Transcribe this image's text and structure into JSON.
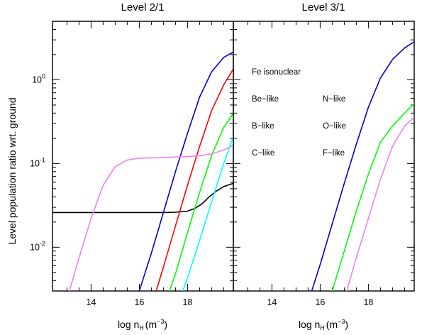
{
  "chart_data": [
    {
      "type": "line",
      "title": "Level 2/1",
      "xlabel": "log n",
      "xlabel_sub": "H",
      "xlabel_unit": "(m",
      "xlabel_sup": "−3",
      "xlabel_close": ")",
      "ylabel": "Level population ratio wrt. ground",
      "xlim": [
        12.4,
        19.9
      ],
      "ylim": [
        0.003,
        5
      ],
      "yscale": "log",
      "xticks": [
        14,
        16,
        18
      ],
      "yticks": [
        {
          "value": 0.01,
          "base": "10",
          "exp": "-2"
        },
        {
          "value": 0.1,
          "base": "10",
          "exp": "-1"
        },
        {
          "value": 1,
          "base": "10",
          "exp": "0"
        }
      ],
      "series": [
        {
          "name": "Be-like",
          "color": "#000000",
          "points": [
            [
              12.4,
              0.026
            ],
            [
              17.0,
              0.026
            ],
            [
              17.5,
              0.0262
            ],
            [
              18.0,
              0.027
            ],
            [
              18.3,
              0.029
            ],
            [
              18.6,
              0.033
            ],
            [
              18.9,
              0.04
            ],
            [
              19.2,
              0.047
            ],
            [
              19.5,
              0.053
            ],
            [
              19.9,
              0.058
            ]
          ]
        },
        {
          "name": "B-like",
          "color": "#ff0000",
          "points": [
            [
              16.7,
              0.003
            ],
            [
              17.0,
              0.0058
            ],
            [
              17.5,
              0.018
            ],
            [
              18.0,
              0.055
            ],
            [
              18.5,
              0.16
            ],
            [
              19.0,
              0.43
            ],
            [
              19.5,
              0.87
            ],
            [
              19.9,
              1.35
            ]
          ]
        },
        {
          "name": "C-like",
          "color": "#0000cd",
          "points": [
            [
              16.0,
              0.003
            ],
            [
              16.5,
              0.0085
            ],
            [
              17.0,
              0.026
            ],
            [
              17.5,
              0.08
            ],
            [
              18.0,
              0.23
            ],
            [
              18.5,
              0.62
            ],
            [
              19.0,
              1.25
            ],
            [
              19.5,
              1.85
            ],
            [
              19.9,
              2.15
            ]
          ]
        },
        {
          "name": "N-like",
          "color": "#00ff00",
          "points": [
            [
              17.25,
              0.003
            ],
            [
              17.5,
              0.0048
            ],
            [
              18.0,
              0.015
            ],
            [
              18.5,
              0.045
            ],
            [
              19.0,
              0.125
            ],
            [
              19.5,
              0.27
            ],
            [
              19.9,
              0.4
            ]
          ]
        },
        {
          "name": "O-like",
          "color": "#ee82ee",
          "points": [
            [
              13.1,
              0.003
            ],
            [
              13.5,
              0.0075
            ],
            [
              14.0,
              0.022
            ],
            [
              14.5,
              0.055
            ],
            [
              15.0,
              0.092
            ],
            [
              15.5,
              0.11
            ],
            [
              16.0,
              0.116
            ],
            [
              17.0,
              0.118
            ],
            [
              18.0,
              0.121
            ],
            [
              18.5,
              0.124
            ],
            [
              19.0,
              0.13
            ],
            [
              19.5,
              0.145
            ],
            [
              19.9,
              0.165
            ]
          ]
        },
        {
          "name": "F-like",
          "color": "#00ffff",
          "points": [
            [
              17.8,
              0.003
            ],
            [
              18.0,
              0.0043
            ],
            [
              18.5,
              0.012
            ],
            [
              19.0,
              0.035
            ],
            [
              19.5,
              0.1
            ],
            [
              19.9,
              0.21
            ]
          ]
        }
      ]
    },
    {
      "type": "line",
      "title": "Level 3/1",
      "xlabel": "log n",
      "xlabel_sub": "H",
      "xlabel_unit": "(m",
      "xlabel_sup": "−3",
      "xlabel_close": ")",
      "xlim": [
        12.4,
        19.9
      ],
      "ylim": [
        0.003,
        5
      ],
      "yscale": "log",
      "xticks": [
        14,
        16,
        18
      ],
      "series": [
        {
          "name": "C-like",
          "color": "#0000cd",
          "points": [
            [
              15.65,
              0.003
            ],
            [
              16.0,
              0.0062
            ],
            [
              16.5,
              0.019
            ],
            [
              17.0,
              0.058
            ],
            [
              17.5,
              0.17
            ],
            [
              18.0,
              0.47
            ],
            [
              18.5,
              1.05
            ],
            [
              19.0,
              1.75
            ],
            [
              19.5,
              2.4
            ],
            [
              19.9,
              2.85
            ]
          ]
        },
        {
          "name": "N-like",
          "color": "#00ff00",
          "points": [
            [
              16.5,
              0.003
            ],
            [
              17.0,
              0.009
            ],
            [
              17.5,
              0.027
            ],
            [
              18.0,
              0.075
            ],
            [
              18.5,
              0.18
            ],
            [
              19.0,
              0.28
            ],
            [
              19.5,
              0.4
            ],
            [
              19.9,
              0.52
            ]
          ]
        },
        {
          "name": "O-like",
          "color": "#ee82ee",
          "points": [
            [
              17.1,
              0.003
            ],
            [
              17.5,
              0.0075
            ],
            [
              18.0,
              0.022
            ],
            [
              18.5,
              0.065
            ],
            [
              19.0,
              0.16
            ],
            [
              19.5,
              0.28
            ],
            [
              19.9,
              0.36
            ]
          ]
        }
      ]
    }
  ],
  "legend": {
    "header": "Fe isonuclear",
    "items": [
      {
        "label": "Be−like",
        "color": "#000000"
      },
      {
        "label": "B−like",
        "color": "#ff0000"
      },
      {
        "label": "C−like",
        "color": "#0000cd"
      },
      {
        "label": "N−like",
        "color": "#00ff00"
      },
      {
        "label": "O−like",
        "color": "#ee82ee"
      },
      {
        "label": "F−like",
        "color": "#00ffff"
      }
    ]
  }
}
